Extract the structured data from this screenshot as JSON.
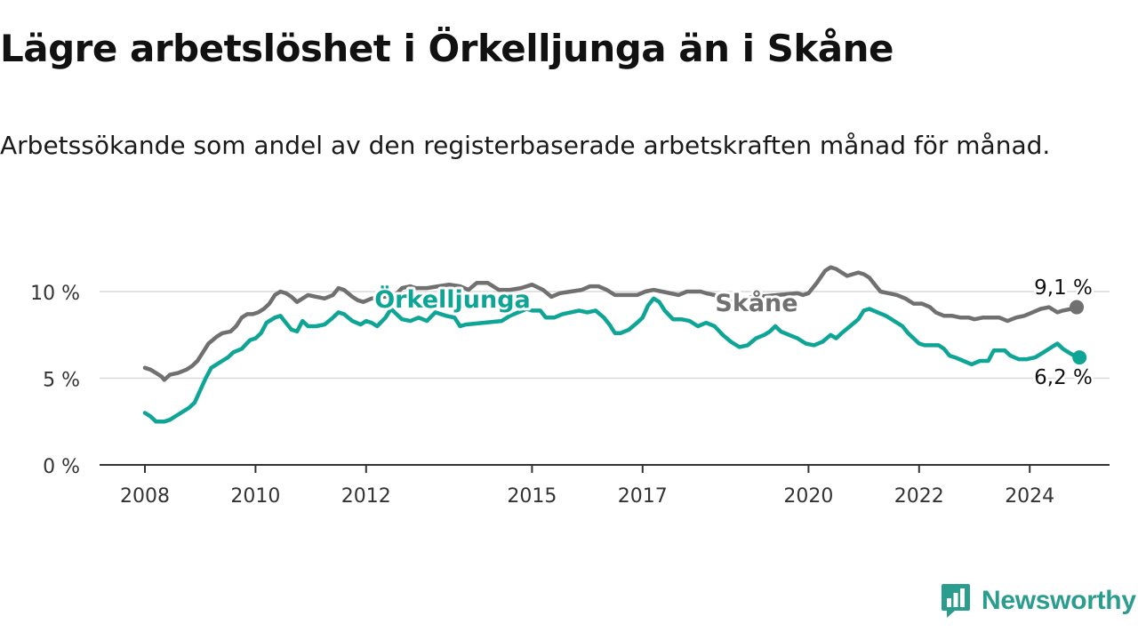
{
  "title": "Lägre arbetslöshet i Örkelljunga än i Skåne",
  "subtitle": "Arbetssökande som andel av den registerbaserade arbetskraften månad för månad.",
  "brand": {
    "name": "Newsworthy",
    "icon": "newsworthy-logo-icon",
    "color": "#2a9d8f"
  },
  "chart_data": {
    "type": "line",
    "title": "Lägre arbetslöshet i Örkelljunga än i Skåne",
    "xlabel": "",
    "ylabel": "",
    "xlim": [
      2008,
      2025.4
    ],
    "ylim": [
      0,
      11.5
    ],
    "y_ticks": [
      {
        "value": 0,
        "label": "0 %"
      },
      {
        "value": 5,
        "label": "5 %"
      },
      {
        "value": 10,
        "label": "10 %"
      }
    ],
    "x_ticks": [
      {
        "value": 2008,
        "label": "2008"
      },
      {
        "value": 2010,
        "label": "2010"
      },
      {
        "value": 2012,
        "label": "2012"
      },
      {
        "value": 2015,
        "label": "2015"
      },
      {
        "value": 2017,
        "label": "2017"
      },
      {
        "value": 2020,
        "label": "2020"
      },
      {
        "value": 2022,
        "label": "2022"
      },
      {
        "value": 2024,
        "label": "2024"
      }
    ],
    "grid": true,
    "series": [
      {
        "name": "Skåne",
        "color": "#707070",
        "end_label": "9,1 %",
        "points": [
          [
            2008.0,
            5.6
          ],
          [
            2008.1,
            5.5
          ],
          [
            2008.2,
            5.3
          ],
          [
            2008.3,
            5.1
          ],
          [
            2008.35,
            4.9
          ],
          [
            2008.45,
            5.2
          ],
          [
            2008.6,
            5.3
          ],
          [
            2008.75,
            5.5
          ],
          [
            2008.85,
            5.7
          ],
          [
            2008.95,
            6.0
          ],
          [
            2009.05,
            6.5
          ],
          [
            2009.15,
            7.0
          ],
          [
            2009.3,
            7.4
          ],
          [
            2009.4,
            7.6
          ],
          [
            2009.55,
            7.7
          ],
          [
            2009.65,
            8.0
          ],
          [
            2009.75,
            8.5
          ],
          [
            2009.85,
            8.7
          ],
          [
            2009.95,
            8.7
          ],
          [
            2010.05,
            8.8
          ],
          [
            2010.15,
            9.0
          ],
          [
            2010.25,
            9.3
          ],
          [
            2010.35,
            9.8
          ],
          [
            2010.45,
            10.0
          ],
          [
            2010.55,
            9.9
          ],
          [
            2010.65,
            9.7
          ],
          [
            2010.75,
            9.4
          ],
          [
            2010.85,
            9.6
          ],
          [
            2010.95,
            9.8
          ],
          [
            2011.1,
            9.7
          ],
          [
            2011.25,
            9.6
          ],
          [
            2011.4,
            9.8
          ],
          [
            2011.5,
            10.2
          ],
          [
            2011.6,
            10.1
          ],
          [
            2011.75,
            9.7
          ],
          [
            2011.85,
            9.5
          ],
          [
            2011.95,
            9.4
          ],
          [
            2012.1,
            9.6
          ],
          [
            2012.3,
            9.7
          ],
          [
            2012.5,
            9.7
          ],
          [
            2012.65,
            10.2
          ],
          [
            2012.8,
            10.3
          ],
          [
            2012.9,
            10.2
          ],
          [
            2013.1,
            10.2
          ],
          [
            2013.3,
            10.3
          ],
          [
            2013.5,
            10.4
          ],
          [
            2013.7,
            10.3
          ],
          [
            2013.85,
            10.1
          ],
          [
            2014.0,
            10.5
          ],
          [
            2014.2,
            10.5
          ],
          [
            2014.4,
            10.1
          ],
          [
            2014.6,
            10.1
          ],
          [
            2014.8,
            10.2
          ],
          [
            2015.0,
            10.4
          ],
          [
            2015.2,
            10.1
          ],
          [
            2015.35,
            9.7
          ],
          [
            2015.5,
            9.9
          ],
          [
            2015.7,
            10.0
          ],
          [
            2015.9,
            10.1
          ],
          [
            2016.05,
            10.3
          ],
          [
            2016.2,
            10.3
          ],
          [
            2016.35,
            10.1
          ],
          [
            2016.5,
            9.8
          ],
          [
            2016.7,
            9.8
          ],
          [
            2016.9,
            9.8
          ],
          [
            2017.05,
            10.0
          ],
          [
            2017.2,
            10.1
          ],
          [
            2017.35,
            10.0
          ],
          [
            2017.5,
            9.9
          ],
          [
            2017.65,
            9.8
          ],
          [
            2017.8,
            10.0
          ],
          [
            2017.95,
            10.0
          ],
          [
            2018.05,
            10.0
          ],
          [
            2018.15,
            9.9
          ],
          [
            2018.3,
            9.8
          ],
          [
            2018.4,
            9.5
          ],
          [
            2019.8,
            9.9
          ],
          [
            2019.9,
            9.8
          ],
          [
            2020.0,
            9.9
          ],
          [
            2020.15,
            10.5
          ],
          [
            2020.3,
            11.2
          ],
          [
            2020.4,
            11.4
          ],
          [
            2020.5,
            11.3
          ],
          [
            2020.6,
            11.1
          ],
          [
            2020.7,
            10.9
          ],
          [
            2020.8,
            11.0
          ],
          [
            2020.9,
            11.1
          ],
          [
            2021.0,
            11.0
          ],
          [
            2021.1,
            10.8
          ],
          [
            2021.2,
            10.4
          ],
          [
            2021.3,
            10.0
          ],
          [
            2021.45,
            9.9
          ],
          [
            2021.6,
            9.8
          ],
          [
            2021.75,
            9.6
          ],
          [
            2021.9,
            9.3
          ],
          [
            2022.05,
            9.3
          ],
          [
            2022.2,
            9.1
          ],
          [
            2022.3,
            8.8
          ],
          [
            2022.45,
            8.6
          ],
          [
            2022.6,
            8.6
          ],
          [
            2022.75,
            8.5
          ],
          [
            2022.9,
            8.5
          ],
          [
            2023.0,
            8.4
          ],
          [
            2023.15,
            8.5
          ],
          [
            2023.3,
            8.5
          ],
          [
            2023.45,
            8.5
          ],
          [
            2023.6,
            8.3
          ],
          [
            2023.75,
            8.5
          ],
          [
            2023.9,
            8.6
          ],
          [
            2024.05,
            8.8
          ],
          [
            2024.2,
            9.0
          ],
          [
            2024.35,
            9.1
          ],
          [
            2024.5,
            8.8
          ],
          [
            2024.6,
            8.9
          ],
          [
            2024.75,
            9.0
          ],
          [
            2024.85,
            9.1
          ]
        ]
      },
      {
        "name": "Örkelljunga",
        "color": "#0ea597",
        "end_label": "6,2 %",
        "points": [
          [
            2008.0,
            3.0
          ],
          [
            2008.1,
            2.8
          ],
          [
            2008.2,
            2.5
          ],
          [
            2008.35,
            2.5
          ],
          [
            2008.45,
            2.6
          ],
          [
            2008.55,
            2.8
          ],
          [
            2008.7,
            3.1
          ],
          [
            2008.8,
            3.3
          ],
          [
            2008.9,
            3.6
          ],
          [
            2009.0,
            4.3
          ],
          [
            2009.1,
            5.0
          ],
          [
            2009.2,
            5.6
          ],
          [
            2009.35,
            5.9
          ],
          [
            2009.5,
            6.2
          ],
          [
            2009.6,
            6.5
          ],
          [
            2009.75,
            6.7
          ],
          [
            2009.9,
            7.2
          ],
          [
            2010.0,
            7.3
          ],
          [
            2010.1,
            7.6
          ],
          [
            2010.2,
            8.2
          ],
          [
            2010.35,
            8.5
          ],
          [
            2010.45,
            8.6
          ],
          [
            2010.55,
            8.2
          ],
          [
            2010.65,
            7.8
          ],
          [
            2010.75,
            7.7
          ],
          [
            2010.85,
            8.3
          ],
          [
            2010.95,
            8.0
          ],
          [
            2011.1,
            8.0
          ],
          [
            2011.25,
            8.1
          ],
          [
            2011.4,
            8.5
          ],
          [
            2011.5,
            8.8
          ],
          [
            2011.6,
            8.7
          ],
          [
            2011.75,
            8.3
          ],
          [
            2011.9,
            8.1
          ],
          [
            2012.0,
            8.3
          ],
          [
            2012.1,
            8.2
          ],
          [
            2012.2,
            8.0
          ],
          [
            2012.35,
            8.5
          ],
          [
            2012.45,
            9.0
          ],
          [
            2012.55,
            8.7
          ],
          [
            2012.65,
            8.4
          ],
          [
            2012.8,
            8.3
          ],
          [
            2012.95,
            8.5
          ],
          [
            2013.1,
            8.3
          ],
          [
            2013.25,
            8.8
          ],
          [
            2013.45,
            8.6
          ],
          [
            2013.6,
            8.5
          ],
          [
            2013.7,
            8.0
          ],
          [
            2013.8,
            8.1
          ],
          [
            2014.45,
            8.3
          ],
          [
            2014.6,
            8.6
          ],
          [
            2014.75,
            8.8
          ],
          [
            2014.9,
            9.0
          ],
          [
            2015.0,
            8.9
          ],
          [
            2015.15,
            8.9
          ],
          [
            2015.25,
            8.5
          ],
          [
            2015.4,
            8.5
          ],
          [
            2015.55,
            8.7
          ],
          [
            2015.7,
            8.8
          ],
          [
            2015.85,
            8.9
          ],
          [
            2016.0,
            8.8
          ],
          [
            2016.15,
            8.9
          ],
          [
            2016.3,
            8.5
          ],
          [
            2016.4,
            8.1
          ],
          [
            2016.5,
            7.6
          ],
          [
            2016.6,
            7.6
          ],
          [
            2016.75,
            7.8
          ],
          [
            2016.9,
            8.2
          ],
          [
            2017.0,
            8.5
          ],
          [
            2017.1,
            9.2
          ],
          [
            2017.2,
            9.6
          ],
          [
            2017.3,
            9.4
          ],
          [
            2017.4,
            8.9
          ],
          [
            2017.55,
            8.4
          ],
          [
            2017.7,
            8.4
          ],
          [
            2017.85,
            8.3
          ],
          [
            2018.0,
            8.0
          ],
          [
            2018.15,
            8.2
          ],
          [
            2018.3,
            8.0
          ],
          [
            2018.45,
            7.5
          ],
          [
            2018.6,
            7.1
          ],
          [
            2018.75,
            6.8
          ],
          [
            2018.9,
            6.9
          ],
          [
            2019.05,
            7.3
          ],
          [
            2019.2,
            7.5
          ],
          [
            2019.3,
            7.7
          ],
          [
            2019.4,
            8.0
          ],
          [
            2019.5,
            7.7
          ],
          [
            2019.65,
            7.5
          ],
          [
            2019.8,
            7.3
          ],
          [
            2019.95,
            7.0
          ],
          [
            2020.1,
            6.9
          ],
          [
            2020.25,
            7.1
          ],
          [
            2020.4,
            7.5
          ],
          [
            2020.5,
            7.3
          ],
          [
            2020.6,
            7.6
          ],
          [
            2020.75,
            8.0
          ],
          [
            2020.9,
            8.4
          ],
          [
            2021.0,
            8.9
          ],
          [
            2021.1,
            9.0
          ],
          [
            2021.25,
            8.8
          ],
          [
            2021.4,
            8.6
          ],
          [
            2021.55,
            8.3
          ],
          [
            2021.7,
            8.0
          ],
          [
            2021.8,
            7.6
          ],
          [
            2021.9,
            7.3
          ],
          [
            2022.0,
            7.0
          ],
          [
            2022.1,
            6.9
          ],
          [
            2022.2,
            6.9
          ],
          [
            2022.35,
            6.9
          ],
          [
            2022.45,
            6.7
          ],
          [
            2022.55,
            6.3
          ],
          [
            2022.65,
            6.2
          ],
          [
            2022.8,
            6.0
          ],
          [
            2022.95,
            5.8
          ],
          [
            2023.1,
            6.0
          ],
          [
            2023.25,
            6.0
          ],
          [
            2023.35,
            6.6
          ],
          [
            2023.55,
            6.6
          ],
          [
            2023.65,
            6.3
          ],
          [
            2023.8,
            6.1
          ],
          [
            2023.95,
            6.1
          ],
          [
            2024.1,
            6.2
          ],
          [
            2024.25,
            6.5
          ],
          [
            2024.4,
            6.8
          ],
          [
            2024.5,
            7.0
          ],
          [
            2024.6,
            6.7
          ],
          [
            2024.7,
            6.5
          ],
          [
            2024.8,
            6.3
          ],
          [
            2024.9,
            6.2
          ]
        ]
      }
    ],
    "series_labels": [
      {
        "series": "Örkelljunga",
        "text": "Örkelljunga"
      },
      {
        "series": "Skåne",
        "text": "Skåne"
      }
    ]
  }
}
